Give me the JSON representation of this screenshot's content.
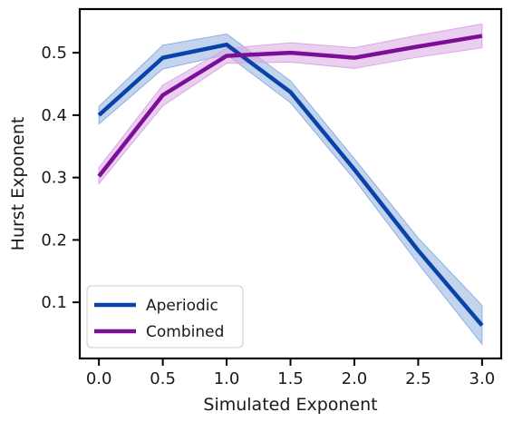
{
  "chart_data": {
    "type": "line",
    "title": "",
    "xlabel": "Simulated Exponent",
    "ylabel": "Hurst Exponent",
    "xlim": [
      -0.15,
      3.15
    ],
    "ylim": [
      0.01,
      0.57
    ],
    "xticks": [
      0.0,
      0.5,
      1.0,
      1.5,
      2.0,
      2.5,
      3.0
    ],
    "xtick_labels": [
      "0.0",
      "0.5",
      "1.0",
      "1.5",
      "2.0",
      "2.5",
      "3.0"
    ],
    "yticks": [
      0.1,
      0.2,
      0.3,
      0.4,
      0.5
    ],
    "ytick_labels": [
      "0.1",
      "0.2",
      "0.3",
      "0.4",
      "0.5"
    ],
    "grid": false,
    "legend_position": "lower-left",
    "x": [
      0.0,
      0.5,
      1.0,
      1.5,
      2.0,
      2.5,
      3.0
    ],
    "series": [
      {
        "name": "Aperiodic",
        "color": "#0a43a8",
        "band_color": "#8fb0e0",
        "values": [
          0.4,
          0.492,
          0.513,
          0.437,
          0.313,
          0.183,
          0.063
        ],
        "lower": [
          0.386,
          0.474,
          0.497,
          0.42,
          0.297,
          0.162,
          0.033
        ],
        "upper": [
          0.414,
          0.512,
          0.53,
          0.455,
          0.33,
          0.203,
          0.095
        ]
      },
      {
        "name": "Combined",
        "color": "#7b0f97",
        "band_color": "#d9a8e4",
        "values": [
          0.302,
          0.432,
          0.495,
          0.5,
          0.492,
          0.51,
          0.527
        ],
        "lower": [
          0.29,
          0.415,
          0.483,
          0.485,
          0.475,
          0.493,
          0.508
        ],
        "upper": [
          0.316,
          0.448,
          0.507,
          0.516,
          0.508,
          0.528,
          0.546
        ]
      }
    ]
  }
}
